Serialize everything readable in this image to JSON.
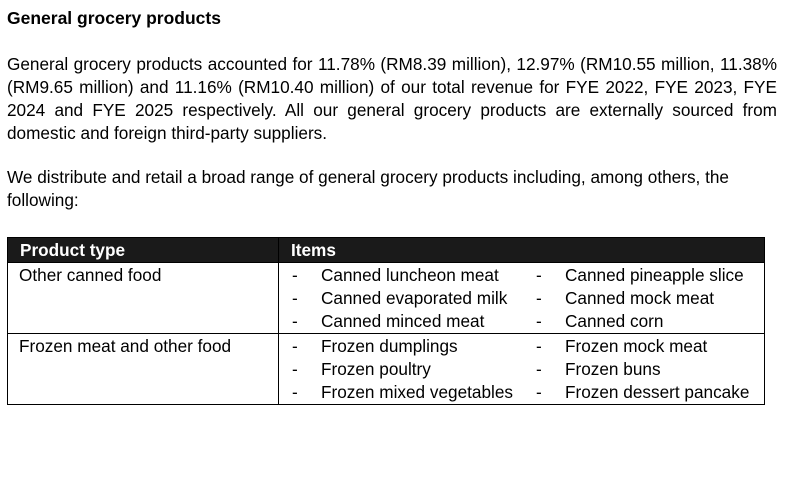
{
  "heading": "General grocery products",
  "paragraph1": "General grocery products accounted for 11.78% (RM8.39 million), 12.97% (RM10.55 million, 11.38% (RM9.65 million) and 11.16% (RM10.40 million) of our total revenue for FYE 2022, FYE 2023, FYE 2024 and FYE 2025 respectively. All our general grocery products are externally sourced from domestic and foreign third-party suppliers.",
  "paragraph2": "We distribute and retail a broad range of general grocery products including, among others, the following:",
  "table": {
    "headers": {
      "product_type": "Product type",
      "items": "Items"
    },
    "bullet": "-",
    "rows": [
      {
        "type": "Other canned food",
        "left_items": [
          "Canned luncheon meat",
          "Canned evaporated milk",
          "Canned minced meat"
        ],
        "right_items": [
          "Canned pineapple slice",
          "Canned mock meat",
          "Canned corn"
        ]
      },
      {
        "type": "Frozen meat and other food",
        "left_items": [
          "Frozen dumplings",
          "Frozen poultry",
          "Frozen mixed vegetables"
        ],
        "right_items": [
          "Frozen mock meat",
          "Frozen buns",
          "Frozen dessert pancake"
        ]
      }
    ]
  }
}
